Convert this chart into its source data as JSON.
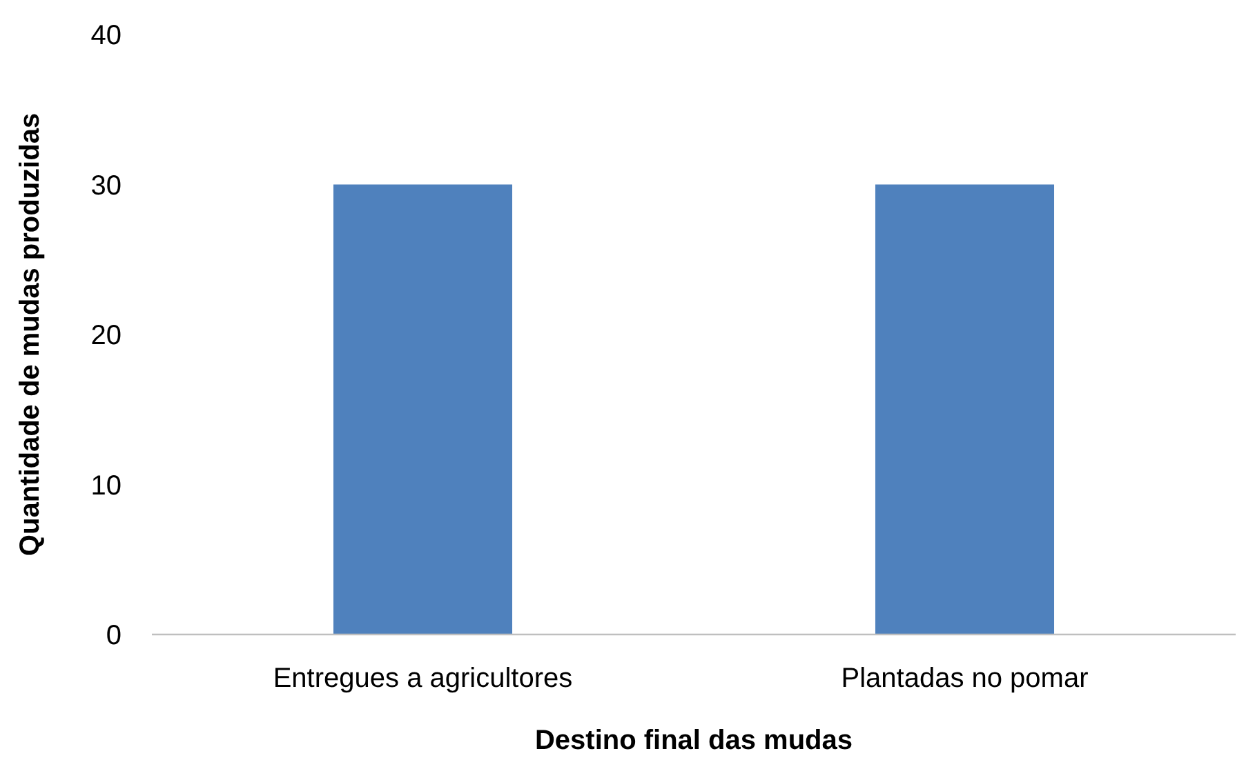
{
  "chart_data": {
    "type": "bar",
    "xlabel": "Destino final das mudas",
    "ylabel": "Quantidade de mudas produzidas",
    "categories": [
      "Entregues a agricultores",
      "Plantadas no pomar"
    ],
    "values": [
      30,
      30
    ],
    "color": "#4f81bd",
    "ylim": [
      0,
      40
    ],
    "yticks": [
      0,
      10,
      20,
      30,
      40
    ],
    "grid": false
  }
}
